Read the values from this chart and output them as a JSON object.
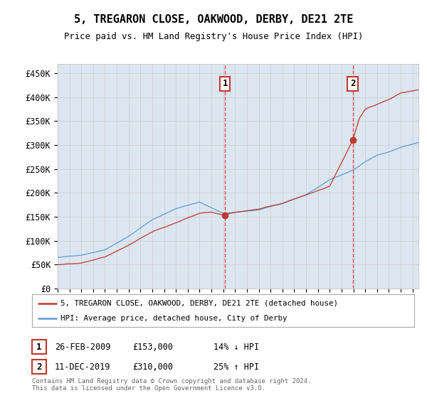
{
  "title": "5, TREGARON CLOSE, OAKWOOD, DERBY, DE21 2TE",
  "subtitle": "Price paid vs. HM Land Registry's House Price Index (HPI)",
  "ylabel_ticks": [
    "£0",
    "£50K",
    "£100K",
    "£150K",
    "£200K",
    "£250K",
    "£300K",
    "£350K",
    "£400K",
    "£450K"
  ],
  "ytick_values": [
    0,
    50000,
    100000,
    150000,
    200000,
    250000,
    300000,
    350000,
    400000,
    450000
  ],
  "ylim": [
    0,
    470000
  ],
  "xlim_start": 1995,
  "xlim_end": 2025.5,
  "transaction1_date": 2009.15,
  "transaction1_price": 153000,
  "transaction1_label": "1",
  "transaction2_date": 2019.95,
  "transaction2_price": 310000,
  "transaction2_label": "2",
  "legend_line1": "5, TREGARON CLOSE, OAKWOOD, DERBY, DE21 2TE (detached house)",
  "legend_line2": "HPI: Average price, detached house, City of Derby",
  "footer": "Contains HM Land Registry data © Crown copyright and database right 2024.\nThis data is licensed under the Open Government Licence v3.0.",
  "hpi_color": "#5b9bd5",
  "price_color": "#c0392b",
  "bg_color": "#dce6f1",
  "plot_bg": "#ffffff",
  "grid_color": "#cccccc",
  "marker_box_color": "#c0392b",
  "dashed_line_color": "#e05050",
  "hpi_key_years": [
    1995,
    1997,
    1999,
    2001,
    2003,
    2005,
    2007,
    2008,
    2009,
    2010,
    2012,
    2014,
    2016,
    2018,
    2020,
    2021,
    2022,
    2023,
    2024,
    2025.5
  ],
  "hpi_key_vals": [
    65000,
    70000,
    82000,
    110000,
    145000,
    168000,
    182000,
    170000,
    158000,
    160000,
    165000,
    178000,
    196000,
    228000,
    248000,
    265000,
    278000,
    285000,
    295000,
    305000
  ],
  "price_key_years": [
    1995,
    1997,
    1999,
    2001,
    2003,
    2005,
    2007,
    2008,
    2009,
    2010,
    2012,
    2014,
    2016,
    2018,
    2019.95,
    2020.5,
    2021,
    2022,
    2023,
    2024,
    2025.5
  ],
  "price_key_vals": [
    50000,
    53000,
    65000,
    90000,
    118000,
    138000,
    158000,
    160000,
    153000,
    158000,
    165000,
    177000,
    194000,
    213000,
    310000,
    355000,
    375000,
    385000,
    395000,
    408000,
    415000
  ],
  "hpi_noise_seed": 42,
  "price_noise_seed": 43
}
